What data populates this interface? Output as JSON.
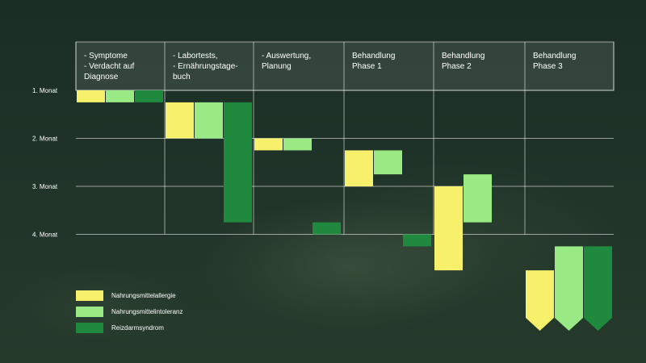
{
  "chart_data": {
    "type": "gantt",
    "columns": [
      [
        "- Symptome",
        "- Verdacht auf",
        "   Diagnose"
      ],
      [
        "- Labortests,",
        "- Ernährungstage-",
        "   buch"
      ],
      [
        "- Auswertung,",
        "   Planung"
      ],
      [
        "Behandlung",
        "Phase 1"
      ],
      [
        "Behandlung",
        "Phase 2"
      ],
      [
        "Behandlung",
        "Phase 3"
      ]
    ],
    "rows": [
      "1. Monat",
      "2. Monat",
      "3. Monat",
      "4. Monat"
    ],
    "series": [
      {
        "name": "Nahrungsmittelallergie",
        "color": "#f7f06a"
      },
      {
        "name": "Nahrungsmittelintoleranz",
        "color": "#99ea84"
      },
      {
        "name": "Reizdarmsyndrom",
        "color": "#1f8a3e"
      }
    ],
    "bars": [
      {
        "stage": 0,
        "series": 0,
        "start": 0.0,
        "end": 0.25
      },
      {
        "stage": 0,
        "series": 1,
        "start": 0.0,
        "end": 0.25
      },
      {
        "stage": 0,
        "series": 2,
        "start": 0.0,
        "end": 0.25
      },
      {
        "stage": 1,
        "series": 0,
        "start": 0.25,
        "end": 1.0
      },
      {
        "stage": 1,
        "series": 1,
        "start": 0.25,
        "end": 1.0
      },
      {
        "stage": 1,
        "series": 2,
        "start": 0.25,
        "end": 2.75
      },
      {
        "stage": 2,
        "series": 0,
        "start": 1.0,
        "end": 1.25
      },
      {
        "stage": 2,
        "series": 1,
        "start": 1.0,
        "end": 1.25
      },
      {
        "stage": 2,
        "series": 2,
        "start": 2.75,
        "end": 3.0
      },
      {
        "stage": 3,
        "series": 0,
        "start": 1.25,
        "end": 2.0
      },
      {
        "stage": 3,
        "series": 1,
        "start": 1.25,
        "end": 1.75
      },
      {
        "stage": 3,
        "series": 2,
        "start": 3.0,
        "end": 3.25
      },
      {
        "stage": 4,
        "series": 0,
        "start": 2.0,
        "end": 3.75
      },
      {
        "stage": 4,
        "series": 1,
        "start": 1.75,
        "end": 2.75
      },
      {
        "stage": 5,
        "series": 0,
        "start": 3.75,
        "end": 5.0,
        "open_end": true
      },
      {
        "stage": 5,
        "series": 1,
        "start": 3.25,
        "end": 5.0,
        "open_end": true
      },
      {
        "stage": 5,
        "series": 2,
        "start": 3.25,
        "end": 5.0,
        "open_end": true
      }
    ]
  }
}
